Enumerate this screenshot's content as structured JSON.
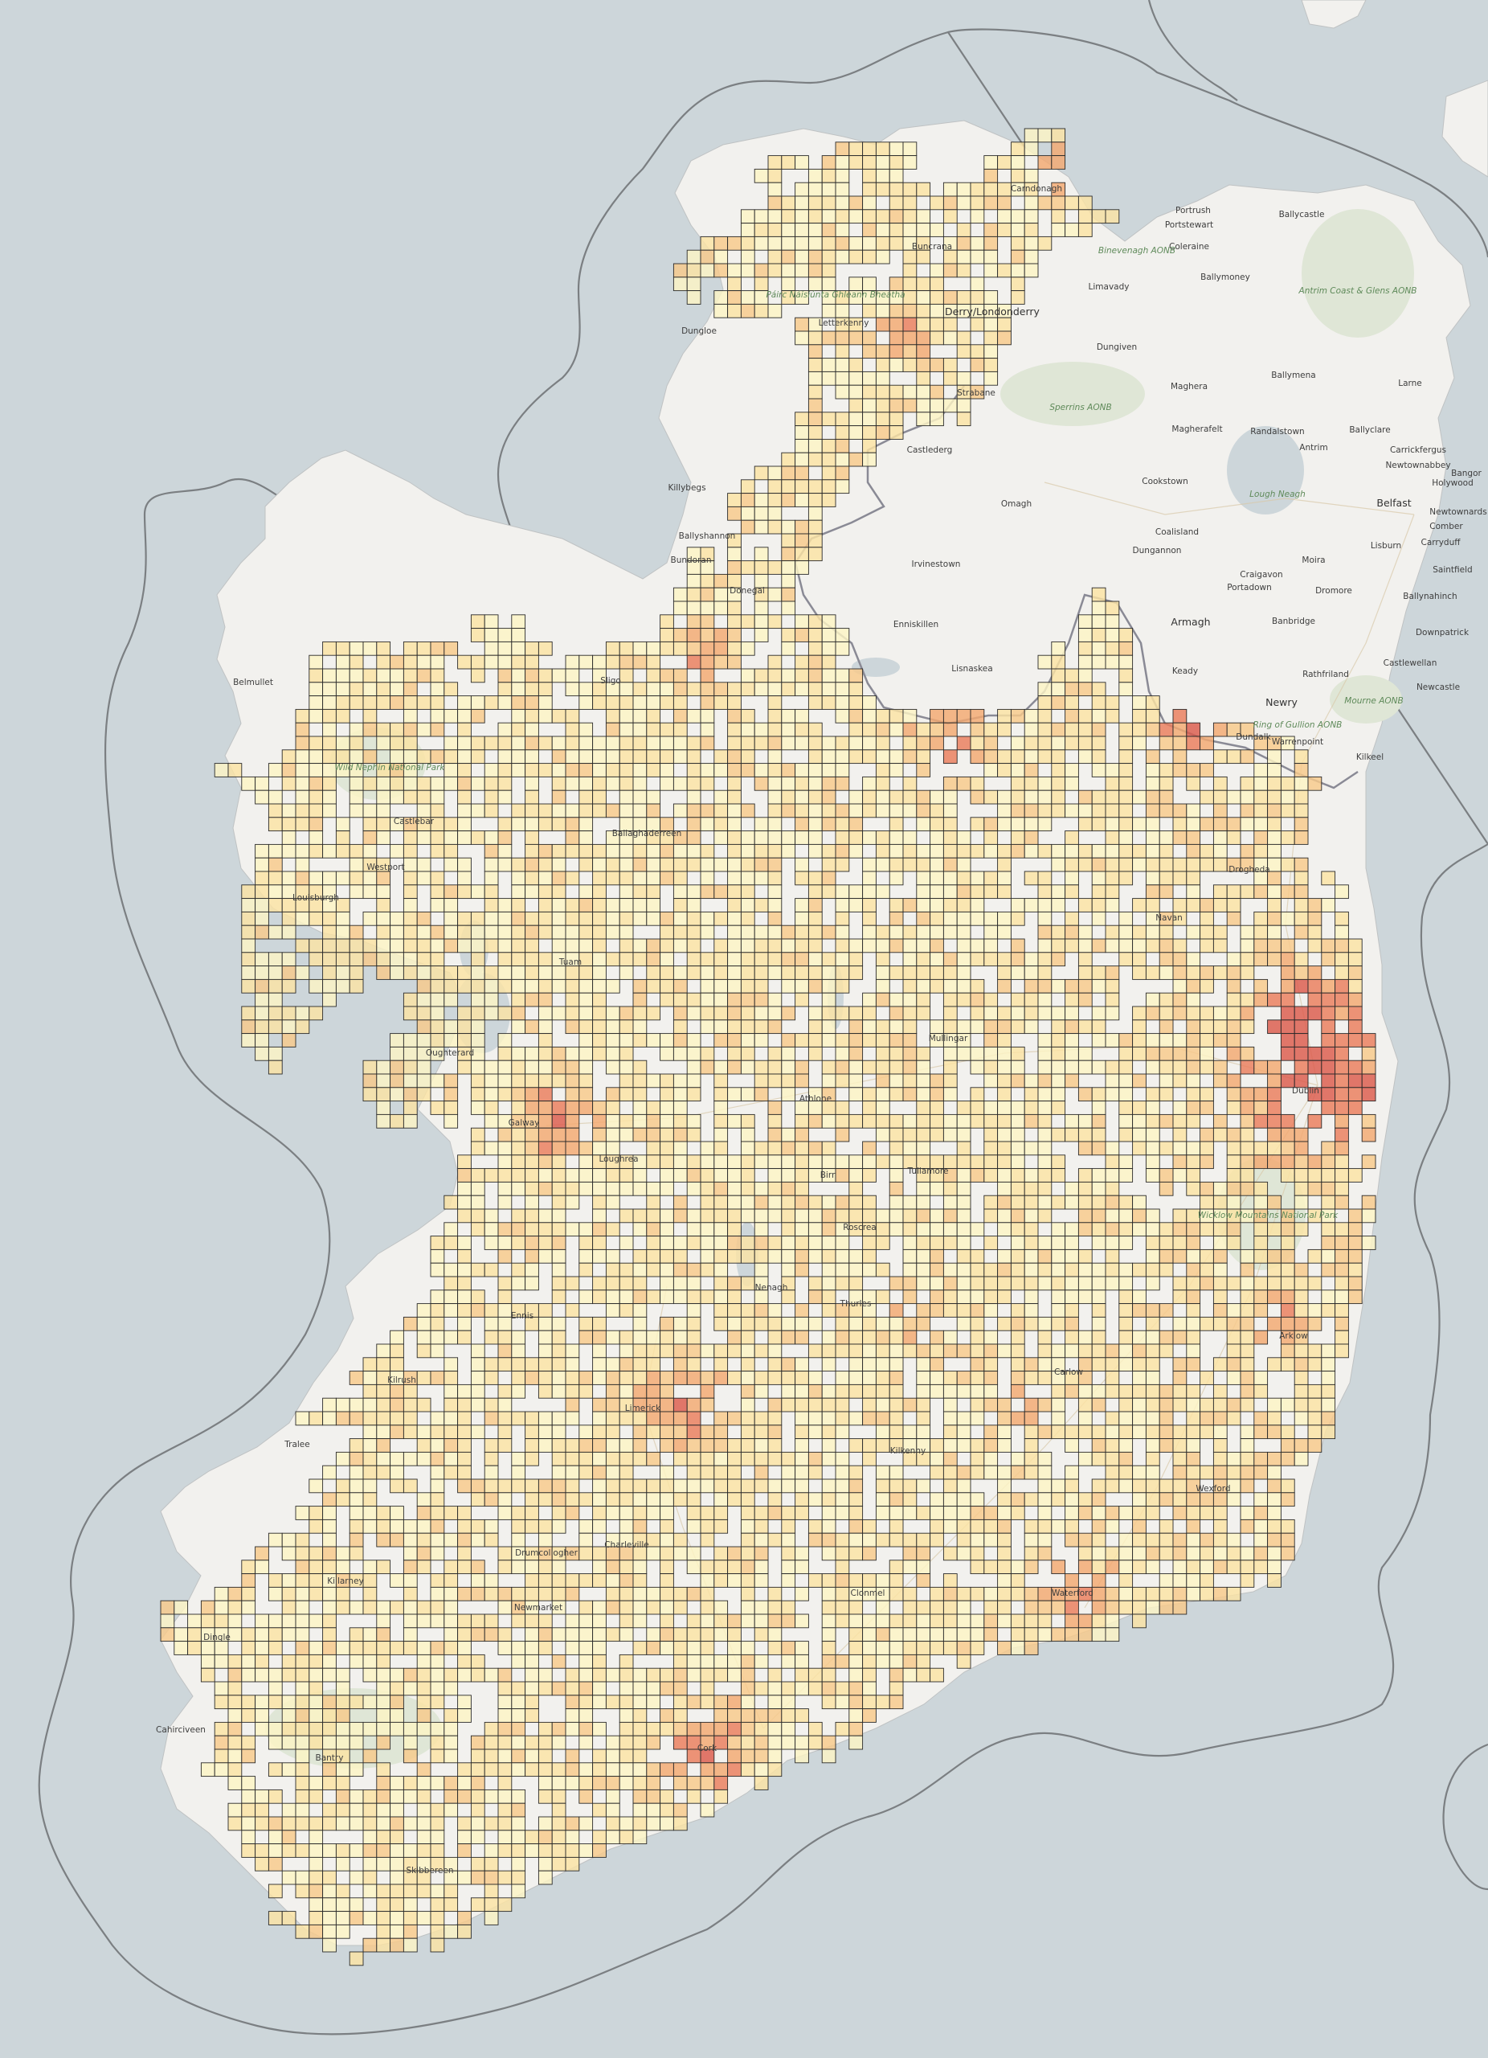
{
  "map": {
    "labels": {
      "ni_towns": [
        "Carndonagh",
        "Portrush",
        "Portstewart",
        "Ballycastle",
        "Coleraine",
        "Limavady",
        "Ballymoney",
        "Derry/Londonderry",
        "Dungiven",
        "Strabane",
        "Maghera",
        "Ballymena",
        "Larne",
        "Magherafelt",
        "Randalstown",
        "Ballyclare",
        "Carrickfergus",
        "Castlederg",
        "Antrim",
        "Newtownabbey",
        "Bangor",
        "Holywood",
        "Cookstown",
        "Omagh",
        "Belfast",
        "Newtownards",
        "Coalisland",
        "Lisburn",
        "Carryduff",
        "Comber",
        "Dungannon",
        "Moira",
        "Saintfield",
        "Irvinestown",
        "Craigavon",
        "Portadown",
        "Dromore",
        "Ballynahinch",
        "Enniskillen",
        "Armagh",
        "Banbridge",
        "Downpatrick",
        "Lisnaskea",
        "Keady",
        "Rathfriland",
        "Castlewellan",
        "Newcastle",
        "Newry",
        "Warrenpoint",
        "Kilkeel"
      ],
      "roi_towns": [
        "Belmullet",
        "Louisburgh",
        "Oughterard",
        "Ballaghaderreen",
        "Dublin",
        "Galway",
        "Limerick",
        "Cork",
        "Waterford",
        "Wexford",
        "Kilkenny",
        "Tralee",
        "Killarney",
        "Bantry",
        "Skibbereen",
        "Cahirciveen",
        "Dingle",
        "Ennis",
        "Kilrush",
        "Newmarket",
        "Drumcollogher",
        "Charleville",
        "Athlone",
        "Tullamore",
        "Mullingar",
        "Navan",
        "Drogheda",
        "Dundalk",
        "Carlow",
        "Arklow",
        "Clonmel",
        "Nenagh",
        "Thurles",
        "Roscrea",
        "Birr",
        "Loughrea",
        "Tuam",
        "Castlebar",
        "Westport",
        "Sligo",
        "Donegal",
        "Letterkenny",
        "Buncrana",
        "Dungloe",
        "Killybegs",
        "Ballyshannon",
        "Bundoran"
      ],
      "parks": [
        "Binevenagh AONB",
        "Sperrins AONB",
        "Antrim Coast & Glens AONB",
        "Lough Neagh",
        "Mourne AONB",
        "Ring of Gullion AONB",
        "Wild Nephin National Park",
        "Páirc Náisiúnta Ghleann Bheatha",
        "Wicklow Mountains National Park"
      ]
    },
    "legend": {
      "heat_colors": [
        "#fdf4c4",
        "#fbe3a4",
        "#f8c98a",
        "#f3a870",
        "#ea7d5c",
        "#dc5a4c"
      ]
    },
    "colors": {
      "sea": "#cdd6da",
      "land": "#f2f1ee",
      "buffer_line": "#7b7f82",
      "grid_stroke": "#2a2a2a",
      "border": "#8a8a95"
    }
  }
}
